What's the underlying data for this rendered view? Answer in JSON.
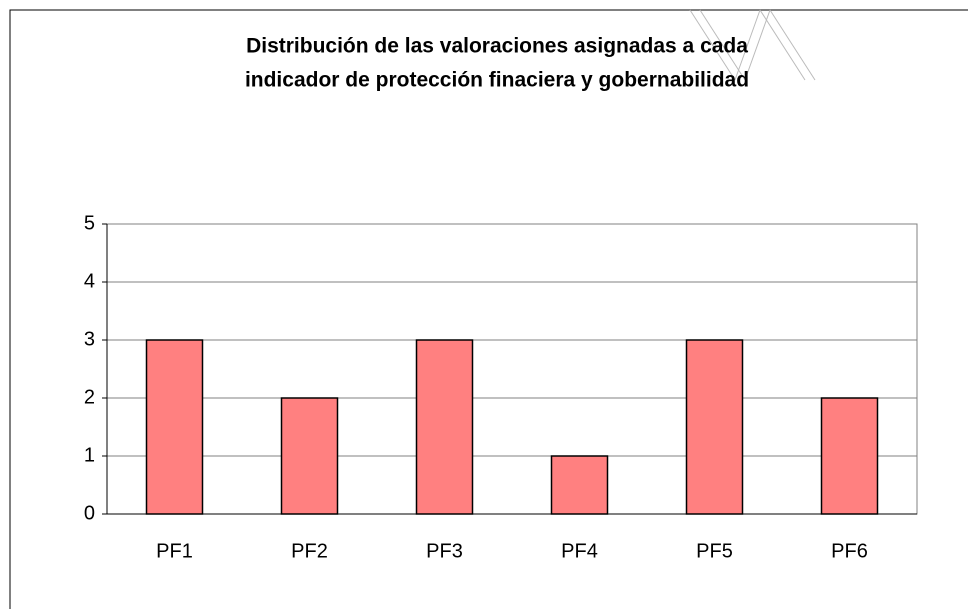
{
  "chart_data": {
    "type": "bar",
    "title": [
      "Distribución de las valoraciones asignadas a cada",
      "indicador de protección finaciera y gobernabilidad"
    ],
    "categories": [
      "PF1",
      "PF2",
      "PF3",
      "PF4",
      "PF5",
      "PF6"
    ],
    "values": [
      3,
      2,
      3,
      1,
      3,
      2
    ],
    "color": "#ff8080",
    "ylim": [
      0,
      5
    ],
    "yticks": [
      0,
      1,
      2,
      3,
      4,
      5
    ],
    "grid": true
  }
}
